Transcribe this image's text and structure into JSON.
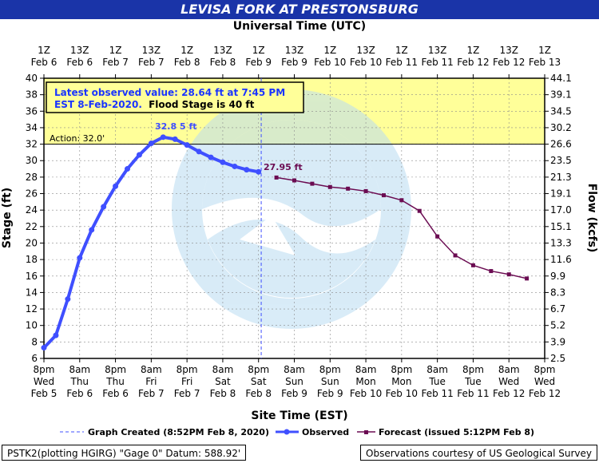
{
  "title": "LEVISA FORK AT PRESTONSBURG",
  "subtitle": "Universal Time (UTC)",
  "xlabel": "Site Time (EST)",
  "ylabel_left": "Stage (ft)",
  "ylabel_right": "Flow (kcfs)",
  "info_line1": "Latest observed value: 28.64 ft at 7:45 PM",
  "info_line2a": "EST 8-Feb-2020.",
  "info_line2b": "Flood Stage is 40 ft",
  "action_label": "Action:  32.0'",
  "peak_label": "32.8 5 ft",
  "last_label": "27.95 ft",
  "legend": {
    "created": "Graph Created (8:52PM Feb 8, 2020)",
    "observed": "Observed",
    "forecast": "Forecast (issued 5:12PM Feb 8)"
  },
  "footer_left": "PSTK2(plotting HGIRG) \"Gage 0\" Datum: 588.92'",
  "footer_right": "Observations courtesy of US Geological Survey",
  "colors": {
    "observed": "#3f4fff",
    "forecast": "#6b0c52",
    "flood": "#ffff99",
    "title_bg": "#1a34a8"
  },
  "chart_data": {
    "type": "line",
    "x_unit": "hours from 8pm Wed Feb 5 (EST)",
    "xlim": [
      0,
      168
    ],
    "ylim": [
      6,
      40
    ],
    "y_ticks": [
      6,
      8,
      10,
      12,
      14,
      16,
      18,
      20,
      22,
      24,
      26,
      28,
      30,
      32,
      34,
      36,
      38,
      40
    ],
    "flow_ticks": [
      {
        "stage": 40,
        "label": "44.1"
      },
      {
        "stage": 38,
        "label": "39.1"
      },
      {
        "stage": 36,
        "label": "34.5"
      },
      {
        "stage": 34,
        "label": "30.2"
      },
      {
        "stage": 32,
        "label": "26.6"
      },
      {
        "stage": 30,
        "label": "23.5"
      },
      {
        "stage": 28,
        "label": "21.3"
      },
      {
        "stage": 26,
        "label": "19.1"
      },
      {
        "stage": 24,
        "label": "17.0"
      },
      {
        "stage": 22,
        "label": "15.1"
      },
      {
        "stage": 20,
        "label": "13.3"
      },
      {
        "stage": 18,
        "label": "11.6"
      },
      {
        "stage": 16,
        "label": "9.9"
      },
      {
        "stage": 14,
        "label": "8.3"
      },
      {
        "stage": 12,
        "label": "6.7"
      },
      {
        "stage": 10,
        "label": "5.2"
      },
      {
        "stage": 8,
        "label": "3.9"
      },
      {
        "stage": 6,
        "label": "2.5"
      }
    ],
    "top_ticks": [
      {
        "h1": "1Z",
        "h2": "Feb  6"
      },
      {
        "h1": "13Z",
        "h2": "Feb  6"
      },
      {
        "h1": "1Z",
        "h2": "Feb  7"
      },
      {
        "h1": "13Z",
        "h2": "Feb  7"
      },
      {
        "h1": "1Z",
        "h2": "Feb  8"
      },
      {
        "h1": "13Z",
        "h2": "Feb  8"
      },
      {
        "h1": "1Z",
        "h2": "Feb  9"
      },
      {
        "h1": "13Z",
        "h2": "Feb  9"
      },
      {
        "h1": "1Z",
        "h2": "Feb 10"
      },
      {
        "h1": "13Z",
        "h2": "Feb 10"
      },
      {
        "h1": "1Z",
        "h2": "Feb 11"
      },
      {
        "h1": "13Z",
        "h2": "Feb 11"
      },
      {
        "h1": "1Z",
        "h2": "Feb 12"
      },
      {
        "h1": "13Z",
        "h2": "Feb 12"
      },
      {
        "h1": "1Z",
        "h2": "Feb 13"
      }
    ],
    "bottom_ticks": [
      {
        "t1": "8pm",
        "t2": "Wed",
        "t3": "Feb  5"
      },
      {
        "t1": "8am",
        "t2": "Thu",
        "t3": "Feb  6"
      },
      {
        "t1": "8pm",
        "t2": "Thu",
        "t3": "Feb  6"
      },
      {
        "t1": "8am",
        "t2": "Fri",
        "t3": "Feb  7"
      },
      {
        "t1": "8pm",
        "t2": "Fri",
        "t3": "Feb  7"
      },
      {
        "t1": "8am",
        "t2": "Sat",
        "t3": "Feb  8"
      },
      {
        "t1": "8pm",
        "t2": "Sat",
        "t3": "Feb  8"
      },
      {
        "t1": "8am",
        "t2": "Sun",
        "t3": "Feb  9"
      },
      {
        "t1": "8pm",
        "t2": "Sun",
        "t3": "Feb  9"
      },
      {
        "t1": "8am",
        "t2": "Mon",
        "t3": "Feb 10"
      },
      {
        "t1": "8pm",
        "t2": "Mon",
        "t3": "Feb 10"
      },
      {
        "t1": "8am",
        "t2": "Tue",
        "t3": "Feb 11"
      },
      {
        "t1": "8pm",
        "t2": "Tue",
        "t3": "Feb 11"
      },
      {
        "t1": "8am",
        "t2": "Wed",
        "t3": "Feb 12"
      },
      {
        "t1": "8pm",
        "t2": "Wed",
        "t3": "Feb 12"
      }
    ],
    "flood_stage": 40,
    "action_stage": 32,
    "graph_created_hour": 72.9,
    "series": [
      {
        "name": "Observed",
        "x": [
          0,
          4,
          8,
          12,
          16,
          20,
          24,
          28,
          32,
          36,
          40,
          44,
          48,
          52,
          56,
          60,
          64,
          68,
          72
        ],
        "values": [
          7.3,
          8.8,
          13.2,
          18.2,
          21.6,
          24.4,
          26.9,
          29.0,
          30.7,
          32.1,
          32.85,
          32.6,
          31.9,
          31.1,
          30.4,
          29.8,
          29.3,
          28.9,
          28.64
        ]
      },
      {
        "name": "Forecast",
        "x": [
          78,
          84,
          90,
          96,
          102,
          108,
          114,
          120,
          126,
          132,
          138,
          144,
          150,
          156,
          162
        ],
        "values": [
          27.95,
          27.6,
          27.2,
          26.8,
          26.6,
          26.3,
          25.8,
          25.2,
          23.9,
          20.8,
          18.5,
          17.3,
          16.6,
          16.2,
          15.7
        ]
      }
    ]
  }
}
